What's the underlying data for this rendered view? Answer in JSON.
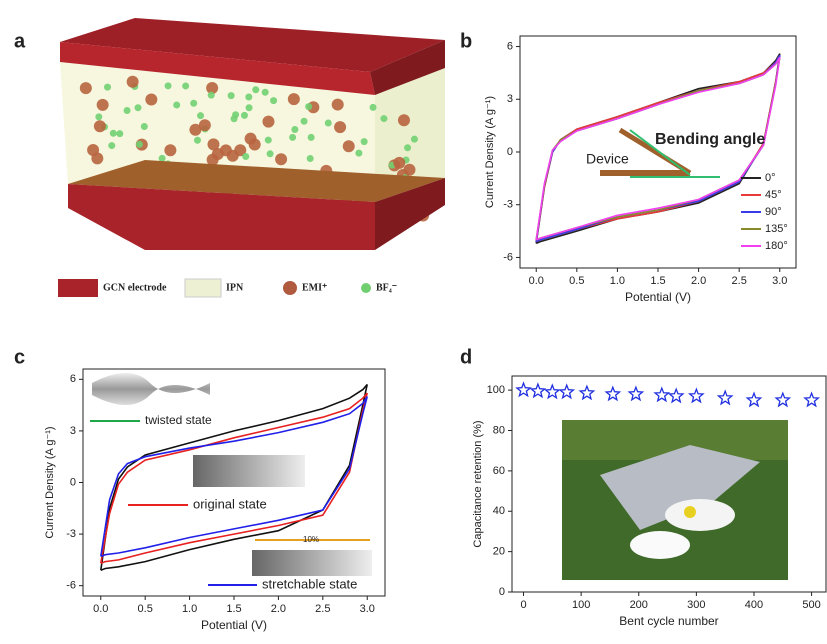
{
  "panel_labels": [
    "a",
    "b",
    "c",
    "d"
  ],
  "panel_a": {
    "legend": [
      "GCN electrode",
      "IPN",
      "EMI⁺",
      "BF₄⁻"
    ]
  },
  "chart_data": [
    {
      "type": "line",
      "xlabel": "Potential (V)",
      "ylabel": "Current Density (A g⁻¹)",
      "x": [
        0,
        0.1,
        0.2,
        0.3,
        0.5,
        1,
        1.5,
        2,
        2.5,
        2.8,
        2.95,
        3,
        2.95,
        2.8,
        2.5,
        2,
        1.5,
        1,
        0.5,
        0.2,
        0.05,
        0
      ],
      "series": [
        {
          "name": "0°",
          "color": "#222222",
          "values": [
            -5.2,
            -2.0,
            0,
            0.7,
            1.3,
            2.0,
            2.8,
            3.6,
            4.0,
            4.5,
            5.2,
            5.6,
            4.0,
            0.5,
            -1.8,
            -2.9,
            -3.4,
            -3.8,
            -4.5,
            -4.9,
            -5.1,
            -5.2
          ]
        },
        {
          "name": "45°",
          "color": "#e83a3a",
          "values": [
            -5.1,
            -2.0,
            0,
            0.7,
            1.3,
            2.0,
            2.8,
            3.5,
            4.0,
            4.5,
            5.1,
            5.5,
            4.0,
            0.5,
            -1.7,
            -2.8,
            -3.4,
            -3.8,
            -4.4,
            -4.8,
            -5.0,
            -5.1
          ]
        },
        {
          "name": "90°",
          "color": "#3a3ae8",
          "values": [
            -5.1,
            -1.9,
            0,
            0.7,
            1.2,
            1.9,
            2.7,
            3.5,
            3.9,
            4.4,
            5.1,
            5.5,
            3.9,
            0.4,
            -1.7,
            -2.8,
            -3.3,
            -3.7,
            -4.4,
            -4.8,
            -5.0,
            -5.1
          ]
        },
        {
          "name": "135°",
          "color": "#8a8a2a",
          "values": [
            -5.0,
            -1.9,
            0.1,
            0.7,
            1.2,
            1.9,
            2.7,
            3.5,
            3.9,
            4.4,
            5.0,
            5.4,
            3.9,
            0.4,
            -1.6,
            -2.7,
            -3.3,
            -3.7,
            -4.3,
            -4.7,
            -4.9,
            -5.0
          ]
        },
        {
          "name": "180°",
          "color": "#f040f0",
          "values": [
            -5.0,
            -1.8,
            0.1,
            0.6,
            1.2,
            1.9,
            2.7,
            3.4,
            3.9,
            4.4,
            5.0,
            5.4,
            3.8,
            0.4,
            -1.6,
            -2.7,
            -3.2,
            -3.6,
            -4.3,
            -4.7,
            -4.9,
            -5.0
          ]
        }
      ],
      "xlim": [
        -0.2,
        3.2
      ],
      "xticks": [
        {
          "value": 0,
          "label": "0.0"
        },
        0.5,
        {
          "value": 1,
          "label": "1.0"
        },
        1.5,
        {
          "value": 2,
          "label": "2.0"
        },
        2.5,
        {
          "value": 3,
          "label": "3.0"
        }
      ],
      "ylim": [
        -6.6,
        6.6
      ],
      "yticks": [
        -6,
        -3,
        0,
        3,
        6
      ],
      "legend": "lower right",
      "annotations": [
        {
          "text": "Bending angle",
          "color": "#111111"
        },
        {
          "text": "Device",
          "color": "#111111"
        }
      ]
    },
    {
      "type": "line",
      "xlabel": "Potential (V)",
      "ylabel": "Current Density (A g⁻¹)",
      "x": [
        0,
        0.1,
        0.2,
        0.3,
        0.5,
        1,
        1.5,
        2,
        2.5,
        2.8,
        2.95,
        3,
        2.95,
        2.8,
        2.5,
        2,
        1.5,
        1,
        0.5,
        0.2,
        0.05,
        0
      ],
      "series": [
        {
          "color": "#111111",
          "values": [
            -5.1,
            -1.5,
            0.2,
            0.9,
            1.6,
            2.3,
            3.0,
            3.6,
            4.3,
            4.9,
            5.4,
            5.7,
            4.5,
            1.0,
            -1.6,
            -2.8,
            -3.3,
            -3.9,
            -4.6,
            -4.9,
            -5.0,
            -5.1
          ]
        },
        {
          "color": "#e82020",
          "values": [
            -4.7,
            -1.8,
            -0.1,
            0.6,
            1.3,
            1.9,
            2.6,
            3.2,
            3.8,
            4.3,
            4.9,
            5.2,
            4.2,
            0.6,
            -1.9,
            -2.5,
            -3.0,
            -3.5,
            -4.1,
            -4.5,
            -4.6,
            -4.7
          ]
        },
        {
          "color": "#2020e8",
          "values": [
            -4.3,
            -1.0,
            0.5,
            1.1,
            1.5,
            2.0,
            2.4,
            2.9,
            3.5,
            4.0,
            4.6,
            5.0,
            4.0,
            0.8,
            -1.6,
            -2.2,
            -2.7,
            -3.2,
            -3.8,
            -4.1,
            -4.2,
            -4.3
          ]
        }
      ],
      "xlim": [
        -0.2,
        3.2
      ],
      "xticks": [
        {
          "value": 0,
          "label": "0.0"
        },
        0.5,
        {
          "value": 1,
          "label": "1.0"
        },
        1.5,
        {
          "value": 2,
          "label": "2.0"
        },
        2.5,
        {
          "value": 3,
          "label": "3.0"
        }
      ],
      "ylim": [
        -6.6,
        6.6
      ],
      "yticks": [
        -6,
        -3,
        0,
        3,
        6
      ],
      "annotations": [
        {
          "text": "twisted state",
          "color": "#1fa84a"
        },
        {
          "text": "original state",
          "color": "#e82020"
        },
        {
          "text": "10%",
          "color": "#e8a020"
        },
        {
          "text": "stretchable state",
          "color": "#2020e8"
        }
      ]
    },
    {
      "type": "scatter",
      "xlabel": "Bent cycle number",
      "ylabel": "Capacitance retention (%)",
      "color": "#2030e0",
      "x": [
        0,
        25,
        50,
        75,
        110,
        155,
        195,
        240,
        265,
        300,
        350,
        400,
        450,
        500
      ],
      "values": [
        100,
        99.5,
        99,
        99,
        98.5,
        98,
        98,
        97.5,
        97,
        97,
        96,
        95,
        95,
        95
      ],
      "xlim": [
        -20,
        525
      ],
      "xticks": [
        0,
        100,
        200,
        300,
        400,
        500
      ],
      "ylim": [
        0,
        107
      ],
      "yticks": [
        0,
        20,
        40,
        60,
        80,
        100
      ]
    }
  ]
}
